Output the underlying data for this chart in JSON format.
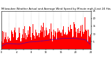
{
  "title": "Milwaukee Weather Actual and Average Wind Speed by Minute mph (Last 24 Hours)",
  "n_points": 1440,
  "y_min": 0,
  "y_max": 25,
  "y_ticks": [
    5,
    10,
    15,
    20,
    25
  ],
  "background_color": "#ffffff",
  "bar_color": "#ff0000",
  "line_color": "#0000ff",
  "grid_color": "#888888",
  "title_fontsize": 2.8,
  "tick_fontsize": 2.5,
  "seed": 42
}
